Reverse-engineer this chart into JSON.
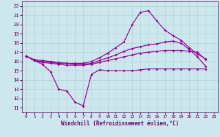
{
  "xlabel": "Windchill (Refroidissement éolien,°C)",
  "bg_color": "#cce8ee",
  "grid_color": "#b0d4cc",
  "line_color": "#990099",
  "xlim": [
    -0.5,
    23.5
  ],
  "ylim": [
    10.5,
    22.5
  ],
  "yticks": [
    11,
    12,
    13,
    14,
    15,
    16,
    17,
    18,
    19,
    20,
    21,
    22
  ],
  "xticks": [
    0,
    1,
    2,
    3,
    4,
    5,
    6,
    7,
    8,
    9,
    10,
    11,
    12,
    13,
    14,
    15,
    16,
    17,
    18,
    19,
    20,
    21,
    22,
    23
  ],
  "line1_x": [
    0,
    1,
    2,
    3,
    4,
    5,
    6,
    7,
    8,
    9,
    10,
    11,
    12,
    13,
    14,
    15,
    16,
    17,
    18,
    19,
    20,
    21,
    22
  ],
  "line1_y": [
    16.6,
    16.1,
    15.7,
    14.9,
    13.0,
    12.8,
    11.6,
    11.2,
    14.6,
    15.1,
    15.0,
    15.0,
    15.0,
    15.0,
    15.1,
    15.2,
    15.2,
    15.2,
    15.2,
    15.2,
    15.2,
    15.2,
    15.2
  ],
  "line2_x": [
    0,
    1,
    2,
    3,
    4,
    5,
    6,
    7,
    8,
    9,
    10,
    11,
    12,
    13,
    14,
    15,
    16,
    17,
    18,
    19,
    20,
    21,
    22
  ],
  "line2_y": [
    16.6,
    16.1,
    15.9,
    15.8,
    15.7,
    15.6,
    15.6,
    15.6,
    15.7,
    15.9,
    16.1,
    16.3,
    16.5,
    16.7,
    16.9,
    17.0,
    17.1,
    17.2,
    17.2,
    17.2,
    17.1,
    17.0,
    16.2
  ],
  "line3_x": [
    0,
    1,
    2,
    3,
    4,
    5,
    6,
    7,
    8,
    9,
    10,
    11,
    12,
    13,
    14,
    15,
    16,
    17,
    18,
    19,
    20,
    21,
    22
  ],
  "line3_y": [
    16.6,
    16.1,
    16.0,
    15.9,
    15.8,
    15.8,
    15.7,
    15.7,
    15.8,
    16.1,
    16.4,
    16.7,
    17.1,
    17.4,
    17.6,
    17.8,
    17.9,
    18.1,
    18.2,
    18.0,
    17.3,
    16.5,
    15.5
  ],
  "line4_x": [
    0,
    1,
    2,
    3,
    4,
    5,
    6,
    7,
    8,
    9,
    10,
    11,
    12,
    13,
    14,
    15,
    16,
    17,
    18,
    19,
    20,
    21,
    22
  ],
  "line4_y": [
    16.6,
    16.2,
    16.1,
    16.0,
    15.9,
    15.8,
    15.8,
    15.8,
    16.0,
    16.4,
    16.9,
    17.5,
    18.1,
    20.0,
    21.3,
    21.5,
    20.4,
    19.4,
    18.8,
    18.3,
    17.5,
    16.8,
    16.3
  ]
}
